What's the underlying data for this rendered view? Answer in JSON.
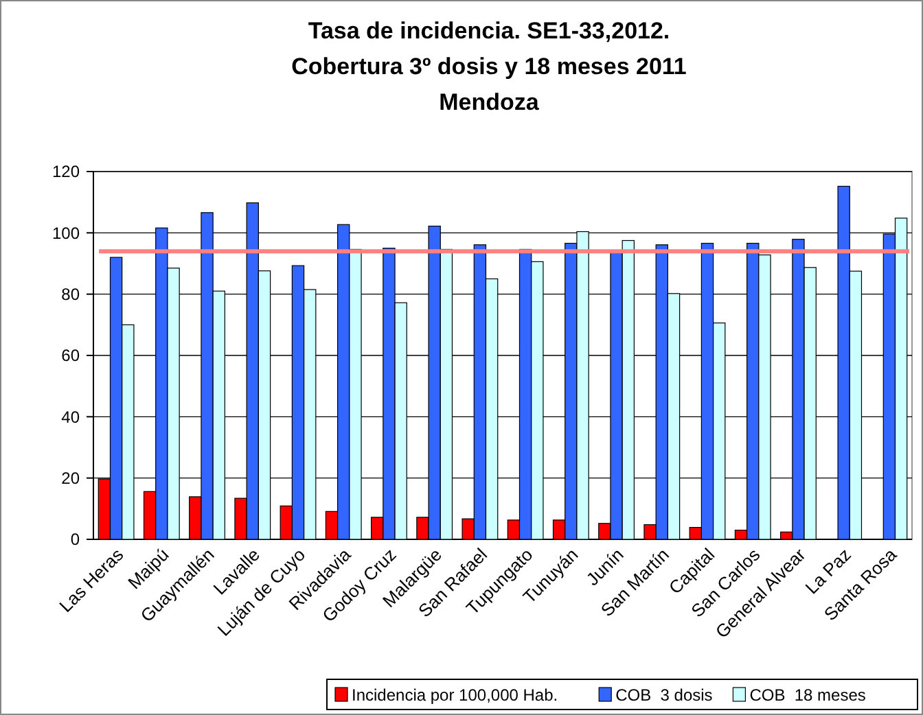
{
  "chart_data": {
    "type": "bar",
    "title": "Tasa de incidencia. SE1-33,2012.\nCobertura 3º dosis y 18 meses 2011\nMendoza",
    "categories": [
      "Las Heras",
      "Maipú",
      "Guaymallén",
      "Lavalle",
      "Luján de Cuyo",
      "Rivadavia",
      "Godoy Cruz",
      "Malargüe",
      "San Rafael",
      "Tupungato",
      "Tunuyán",
      "Junín",
      "San Martín",
      "Capital",
      "San Carlos",
      "General Alvear",
      "La Paz",
      "Santa Rosa"
    ],
    "series": [
      {
        "name": "Incidencia por 100,000 Hab.",
        "color": "#ff0000",
        "values": [
          19.7,
          15.6,
          13.9,
          13.4,
          10.9,
          9.1,
          7.2,
          7.2,
          6.7,
          6.3,
          6.3,
          5.2,
          4.8,
          3.9,
          3,
          2.4,
          null,
          null
        ]
      },
      {
        "name": "COB  3 dosis",
        "color": "#3366ff",
        "values": [
          92,
          101.6,
          106.6,
          109.8,
          89.3,
          102.7,
          95,
          102.2,
          96.1,
          94.6,
          96.6,
          94,
          96.1,
          96.6,
          96.6,
          97.9,
          115.2,
          99.6
        ]
      },
      {
        "name": "COB  18 meses",
        "color": "#ccffff",
        "values": [
          70,
          88.5,
          81,
          87.6,
          81.5,
          94.6,
          77.2,
          94.6,
          85,
          90.6,
          100.4,
          97.5,
          80.2,
          70.6,
          92.8,
          88.7,
          87.5,
          104.8
        ]
      }
    ],
    "ylim": [
      0,
      120
    ],
    "yticks": [
      0,
      20,
      40,
      60,
      80,
      100,
      120
    ],
    "grid": "y",
    "legend": "bottom right",
    "ref_lines": [
      {
        "axis": "y",
        "value": 94,
        "color": "#ff8080"
      }
    ]
  }
}
